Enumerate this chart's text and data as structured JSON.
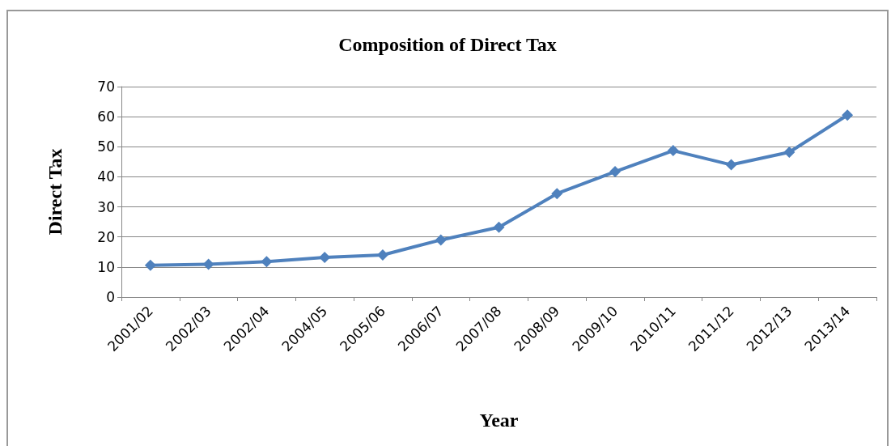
{
  "chart_data": {
    "type": "line",
    "title": "Composition of Direct Tax",
    "xlabel": "Year",
    "ylabel": "Direct Tax",
    "categories": [
      "2001/02",
      "2002/03",
      "2002/04",
      "2004/05",
      "2005/06",
      "2006/07",
      "2007/08",
      "2008/09",
      "2009/10",
      "2010/11",
      "2011/12",
      "2012/13",
      "2013/14"
    ],
    "series": [
      {
        "color": "#4f81bd",
        "values": [
          10.6,
          10.9,
          11.8,
          13.2,
          14.0,
          19.0,
          23.2,
          34.4,
          41.7,
          48.7,
          44.0,
          48.2,
          60.5
        ]
      }
    ],
    "ylim": [
      0,
      70
    ],
    "yticks": [
      0,
      10,
      20,
      30,
      40,
      50,
      60,
      70
    ],
    "grid": "y",
    "marker": "diamond",
    "line_style": "solid"
  }
}
